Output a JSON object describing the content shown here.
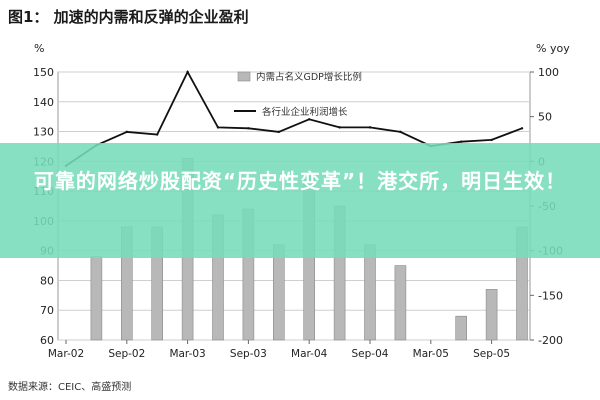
{
  "chart_data": {
    "type": "bar+line",
    "title": "图1：  加速的内需和反弹的企业盈利",
    "left_axis_label": "%",
    "right_axis_label": "% yoy",
    "left_ylim": [
      60,
      150
    ],
    "left_ticks": [
      60,
      70,
      80,
      90,
      100,
      110,
      120,
      130,
      140,
      150
    ],
    "right_ylim": [
      -200,
      100
    ],
    "right_ticks": [
      -200,
      -150,
      -100,
      -50,
      0,
      50,
      100
    ],
    "categories": [
      "Mar-02",
      "Jun-02",
      "Sep-02",
      "Dec-02",
      "Mar-03",
      "Jun-03",
      "Sep-03",
      "Dec-03",
      "Mar-04",
      "Jun-04",
      "Sep-04",
      "Dec-04",
      "Mar-05",
      "Jun-05",
      "Sep-05",
      "Dec-05"
    ],
    "x_tick_labels": [
      "Mar-02",
      "Sep-02",
      "Mar-03",
      "Sep-03",
      "Mar-04",
      "Sep-04",
      "Mar-05",
      "Sep-05"
    ],
    "series": [
      {
        "name": "内需占名义GDP增长比例",
        "kind": "bar",
        "axis": "left",
        "values": [
          null,
          88,
          98,
          98,
          121,
          102,
          104,
          92,
          115,
          105,
          92,
          85,
          60,
          68,
          77,
          98
        ]
      },
      {
        "name": "各行业企业利润增长",
        "kind": "line",
        "axis": "right",
        "values": [
          -5,
          18,
          33,
          30,
          100,
          38,
          37,
          33,
          47,
          38,
          38,
          33,
          17,
          22,
          24,
          37
        ]
      }
    ],
    "grid": "horizontal",
    "legend_position": "top-center"
  },
  "source_text": "数据来源：CEIC、高盛预测",
  "banner_text": "可靠的网络炒股配资“历史性变革”！港交所，明日生效！",
  "colors": {
    "bar": "#b8b8b8",
    "line": "#111111",
    "grid": "#cfcfcf",
    "banner": "#78dcb9"
  }
}
